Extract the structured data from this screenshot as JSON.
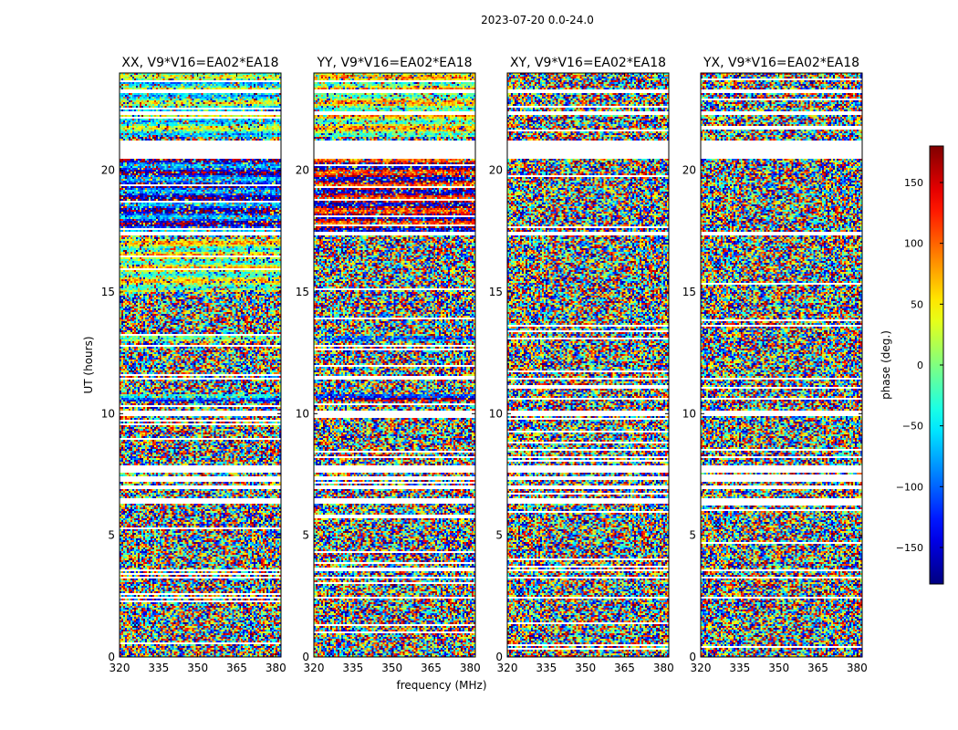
{
  "chart_data": {
    "type": "heatmap",
    "suptitle": "2023-07-20 0.0-24.0",
    "xlabel": "frequency (MHz)",
    "ylabel": "UT (hours)",
    "xlim": [
      320,
      382
    ],
    "ylim": [
      0,
      24
    ],
    "xticks": [
      "320",
      "335",
      "350",
      "365",
      "380"
    ],
    "yticks": [
      "0",
      "5",
      "10",
      "15",
      "20"
    ],
    "colorbar": {
      "label": "phase (deg.)",
      "range": [
        -180,
        180
      ],
      "ticks": [
        "150",
        "100",
        "50",
        "0",
        "−50",
        "−100",
        "−150"
      ],
      "colormap": "jet",
      "colors": [
        "#00007f",
        "#0000ff",
        "#007fff",
        "#00ffff",
        "#7fff7f",
        "#ffff00",
        "#ff7f00",
        "#ff0000",
        "#7f0000"
      ]
    },
    "panels": [
      {
        "title": "XX, V9*V16=EA02*EA18",
        "pol": "XX",
        "ylabel": "UT (hours)"
      },
      {
        "title": "YY, V9*V16=EA02*EA18",
        "pol": "YY",
        "xlabel": "frequency (MHz)"
      },
      {
        "title": "XY, V9*V16=EA02*EA18",
        "pol": "XY"
      },
      {
        "title": "YX, V9*V16=EA02*EA18",
        "pol": "YX"
      }
    ],
    "data_gaps_hours": [
      [
        2.4,
        2.5
      ],
      [
        3.2,
        3.3
      ],
      [
        3.5,
        3.6
      ],
      [
        6.3,
        6.5
      ],
      [
        6.9,
        7.05
      ],
      [
        7.3,
        7.45
      ],
      [
        7.6,
        7.9
      ],
      [
        9.9,
        10.1
      ],
      [
        11.4,
        11.5
      ],
      [
        17.3,
        17.5
      ],
      [
        20.5,
        21.2
      ],
      [
        22.3,
        22.45
      ],
      [
        23.2,
        23.35
      ]
    ],
    "coherent_bands": [
      {
        "pol": "XX",
        "t0": 21.4,
        "t1": 24.0,
        "phase": -20,
        "note": "striped coherent phase"
      },
      {
        "pol": "XX",
        "t0": 17.5,
        "t1": 20.5,
        "phase": -120,
        "note": "blue/red structured region"
      },
      {
        "pol": "XX",
        "t0": 15.0,
        "t1": 17.2,
        "phase": 20,
        "note": "green/yellow bands"
      },
      {
        "pol": "XX",
        "t0": 13.0,
        "t1": 13.2,
        "phase": 40,
        "note": "green band"
      },
      {
        "pol": "XX",
        "t0": 10.5,
        "t1": 10.8,
        "phase": -90,
        "note": "blue band"
      },
      {
        "pol": "XX",
        "t0": 9.9,
        "t1": 10.05,
        "phase": 170,
        "note": "dark red band"
      },
      {
        "pol": "YY",
        "t0": 21.4,
        "t1": 24.0,
        "phase": 30,
        "note": "striped coherent phase"
      },
      {
        "pol": "YY",
        "t0": 17.5,
        "t1": 20.5,
        "phase": 160,
        "note": "red/dark red region"
      },
      {
        "pol": "YY",
        "t0": 13.0,
        "t1": 13.2,
        "phase": -60,
        "note": "cyan band"
      },
      {
        "pol": "YY",
        "t0": 10.5,
        "t1": 10.8,
        "phase": -170,
        "note": "dark blue band"
      }
    ]
  }
}
